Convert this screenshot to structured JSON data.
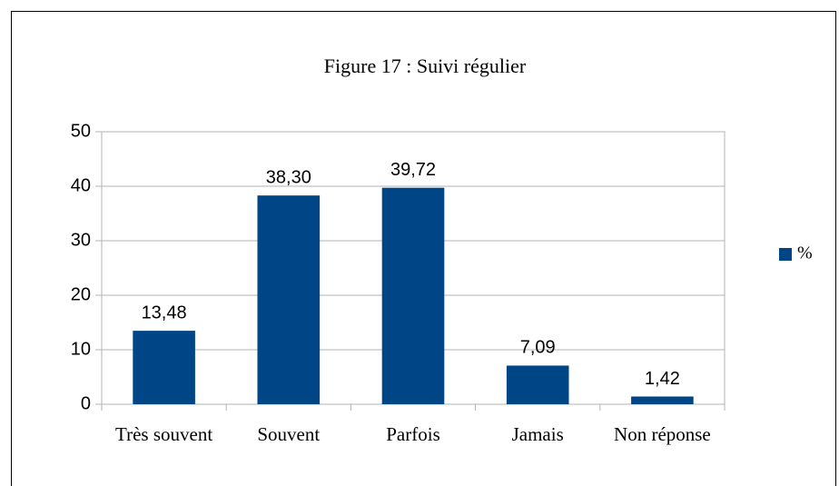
{
  "chart_data": {
    "type": "bar",
    "title": "Figure 17 : Suivi régulier",
    "categories": [
      "Très souvent",
      "Souvent",
      "Parfois",
      "Jamais",
      "Non réponse"
    ],
    "series": [
      {
        "name": "%",
        "color": "#004586",
        "values": [
          13.48,
          38.3,
          39.72,
          7.09,
          1.42
        ],
        "value_labels": [
          "13,48",
          "38,30",
          "39,72",
          "7,09",
          "1,42"
        ]
      }
    ],
    "ylim": [
      0,
      50
    ],
    "yticks": [
      0,
      10,
      20,
      30,
      40,
      50
    ],
    "grid": true,
    "legend": "right"
  }
}
